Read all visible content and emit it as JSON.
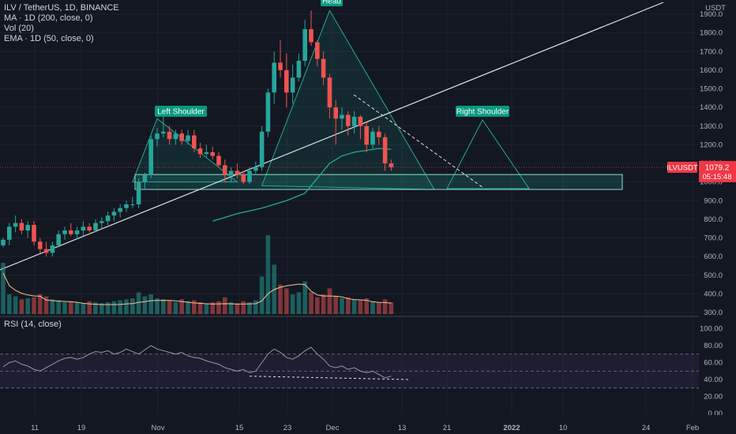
{
  "legend": {
    "symbol": "ILV / TetherUS, 1D, BINANCE",
    "ma": "MA · 1D (200, close, 0)",
    "vol": "Vol (20)",
    "ema": "EMA · 1D (50, close, 0)",
    "rsi": "RSI (14, close)"
  },
  "price_axis": {
    "currency": "USDT",
    "ticks": [
      "1900.0",
      "1800.0",
      "1700.0",
      "1600.0",
      "1500.0",
      "1400.0",
      "1300.0",
      "1200.0",
      "1100.0",
      "1000.0",
      "900.0",
      "800.0",
      "700.0",
      "600.0",
      "500.0",
      "400.0",
      "300.0"
    ]
  },
  "rsi_axis": {
    "ticks": [
      "100.00",
      "80.00",
      "60.00",
      "40.00",
      "20.00",
      "0.00"
    ]
  },
  "price_tag": {
    "symbol": "ILVUSDT",
    "price": "1079.2",
    "countdown": "05:15:48"
  },
  "time_axis": {
    "labels": [
      {
        "text": "11",
        "bold": false
      },
      {
        "text": "19",
        "bold": false
      },
      {
        "text": "Nov",
        "bold": false
      },
      {
        "text": "15",
        "bold": false
      },
      {
        "text": "23",
        "bold": false
      },
      {
        "text": "Dec",
        "bold": false
      },
      {
        "text": "13",
        "bold": false
      },
      {
        "text": "21",
        "bold": false
      },
      {
        "text": "2022",
        "bold": true
      },
      {
        "text": "10",
        "bold": false
      },
      {
        "text": "24",
        "bold": false
      },
      {
        "text": "Feb",
        "bold": false
      }
    ]
  },
  "annotations": {
    "head": "Head",
    "left_shoulder": "Left Shoulder",
    "right_shoulder": "Right Shoulder"
  },
  "colors": {
    "up": "#26a69a",
    "down": "#ef5350",
    "bg": "#131722",
    "text": "#b2b5be",
    "teal": "#22ab94"
  },
  "chart_data": {
    "type": "candlestick",
    "title": "ILV / TetherUS, 1D, BINANCE",
    "ylim": [
      300,
      1950
    ],
    "ohlc": [
      [
        660,
        700,
        650,
        690
      ],
      [
        690,
        780,
        660,
        760
      ],
      [
        760,
        820,
        730,
        780
      ],
      [
        780,
        800,
        720,
        740
      ],
      [
        740,
        790,
        700,
        770
      ],
      [
        770,
        790,
        660,
        680
      ],
      [
        680,
        700,
        620,
        640
      ],
      [
        640,
        680,
        600,
        620
      ],
      [
        620,
        680,
        600,
        660
      ],
      [
        660,
        740,
        650,
        720
      ],
      [
        720,
        760,
        690,
        740
      ],
      [
        740,
        780,
        710,
        720
      ],
      [
        720,
        760,
        690,
        740
      ],
      [
        740,
        790,
        710,
        760
      ],
      [
        760,
        780,
        730,
        740
      ],
      [
        740,
        800,
        730,
        780
      ],
      [
        780,
        810,
        750,
        790
      ],
      [
        790,
        840,
        770,
        820
      ],
      [
        820,
        860,
        790,
        840
      ],
      [
        840,
        880,
        810,
        860
      ],
      [
        860,
        900,
        840,
        880
      ],
      [
        880,
        920,
        860,
        880
      ],
      [
        880,
        1020,
        860,
        1000
      ],
      [
        1000,
        1050,
        960,
        1040
      ],
      [
        1040,
        1250,
        1020,
        1230
      ],
      [
        1230,
        1290,
        1190,
        1260
      ],
      [
        1260,
        1350,
        1240,
        1270
      ],
      [
        1270,
        1300,
        1200,
        1230
      ],
      [
        1230,
        1280,
        1200,
        1260
      ],
      [
        1260,
        1280,
        1200,
        1220
      ],
      [
        1220,
        1280,
        1200,
        1250
      ],
      [
        1250,
        1280,
        1160,
        1180
      ],
      [
        1180,
        1210,
        1130,
        1150
      ],
      [
        1150,
        1200,
        1130,
        1160
      ],
      [
        1160,
        1190,
        1120,
        1140
      ],
      [
        1140,
        1160,
        1080,
        1090
      ],
      [
        1090,
        1120,
        1000,
        1040
      ],
      [
        1040,
        1080,
        1000,
        1060
      ],
      [
        1060,
        1100,
        1020,
        1040
      ],
      [
        1040,
        1060,
        990,
        1000
      ],
      [
        1000,
        1080,
        990,
        1060
      ],
      [
        1060,
        1110,
        1040,
        1080
      ],
      [
        1080,
        1300,
        1060,
        1270
      ],
      [
        1270,
        1500,
        1240,
        1480
      ],
      [
        1480,
        1700,
        1420,
        1640
      ],
      [
        1640,
        1760,
        1560,
        1600
      ],
      [
        1600,
        1690,
        1400,
        1480
      ],
      [
        1480,
        1630,
        1420,
        1560
      ],
      [
        1560,
        1690,
        1540,
        1650
      ],
      [
        1650,
        1870,
        1620,
        1820
      ],
      [
        1820,
        1920,
        1730,
        1750
      ],
      [
        1750,
        1760,
        1620,
        1660
      ],
      [
        1660,
        1700,
        1520,
        1560
      ],
      [
        1560,
        1580,
        1340,
        1400
      ],
      [
        1400,
        1440,
        1200,
        1340
      ],
      [
        1340,
        1400,
        1280,
        1360
      ],
      [
        1360,
        1380,
        1250,
        1300
      ],
      [
        1300,
        1380,
        1260,
        1350
      ],
      [
        1350,
        1360,
        1230,
        1300
      ],
      [
        1300,
        1320,
        1160,
        1200
      ],
      [
        1200,
        1290,
        1180,
        1270
      ],
      [
        1270,
        1300,
        1200,
        1240
      ],
      [
        1240,
        1260,
        1060,
        1100
      ],
      [
        1100,
        1120,
        1060,
        1079
      ]
    ],
    "volume_up": [
      true,
      true,
      true,
      false,
      true,
      false,
      false,
      false,
      true,
      true,
      true,
      false,
      true,
      true,
      false,
      true,
      true,
      true,
      true,
      true,
      true,
      true,
      true,
      true,
      true,
      true,
      true,
      false,
      true,
      false,
      true,
      false,
      false,
      true,
      false,
      false,
      false,
      true,
      false,
      false,
      true,
      true,
      true,
      true,
      true,
      false,
      false,
      true,
      true,
      true,
      false,
      false,
      false,
      false,
      false,
      true,
      false,
      true,
      false,
      false,
      true,
      false,
      false,
      false
    ],
    "volume": [
      520,
      200,
      180,
      150,
      160,
      170,
      200,
      180,
      150,
      140,
      120,
      130,
      120,
      110,
      130,
      120,
      110,
      120,
      130,
      140,
      150,
      160,
      220,
      180,
      200,
      160,
      150,
      140,
      120,
      150,
      130,
      140,
      120,
      110,
      120,
      130,
      170,
      120,
      110,
      130,
      120,
      140,
      380,
      800,
      500,
      300,
      260,
      200,
      220,
      330,
      220,
      170,
      200,
      260,
      180,
      160,
      170,
      150,
      140,
      160,
      130,
      120,
      150,
      120
    ],
    "ma200_label": "MA · 1D (200, close, 0)",
    "ema50": [
      [
        34,
        790
      ],
      [
        38,
        830
      ],
      [
        42,
        860
      ],
      [
        46,
        900
      ],
      [
        49,
        940
      ],
      [
        51,
        1020
      ],
      [
        53,
        1100
      ],
      [
        55,
        1140
      ],
      [
        57,
        1160
      ],
      [
        59,
        1170
      ],
      [
        61,
        1180
      ],
      [
        63,
        1175
      ]
    ],
    "rsi": [
      55,
      60,
      62,
      58,
      56,
      52,
      50,
      54,
      58,
      62,
      65,
      66,
      64,
      66,
      70,
      73,
      72,
      74,
      70,
      72,
      76,
      73,
      70,
      75,
      80,
      76,
      74,
      72,
      70,
      72,
      68,
      66,
      65,
      62,
      60,
      58,
      54,
      52,
      50,
      52,
      48,
      50,
      60,
      70,
      76,
      72,
      66,
      64,
      68,
      74,
      78,
      70,
      64,
      56,
      54,
      56,
      52,
      54,
      50,
      48,
      50,
      46,
      42,
      44
    ]
  }
}
